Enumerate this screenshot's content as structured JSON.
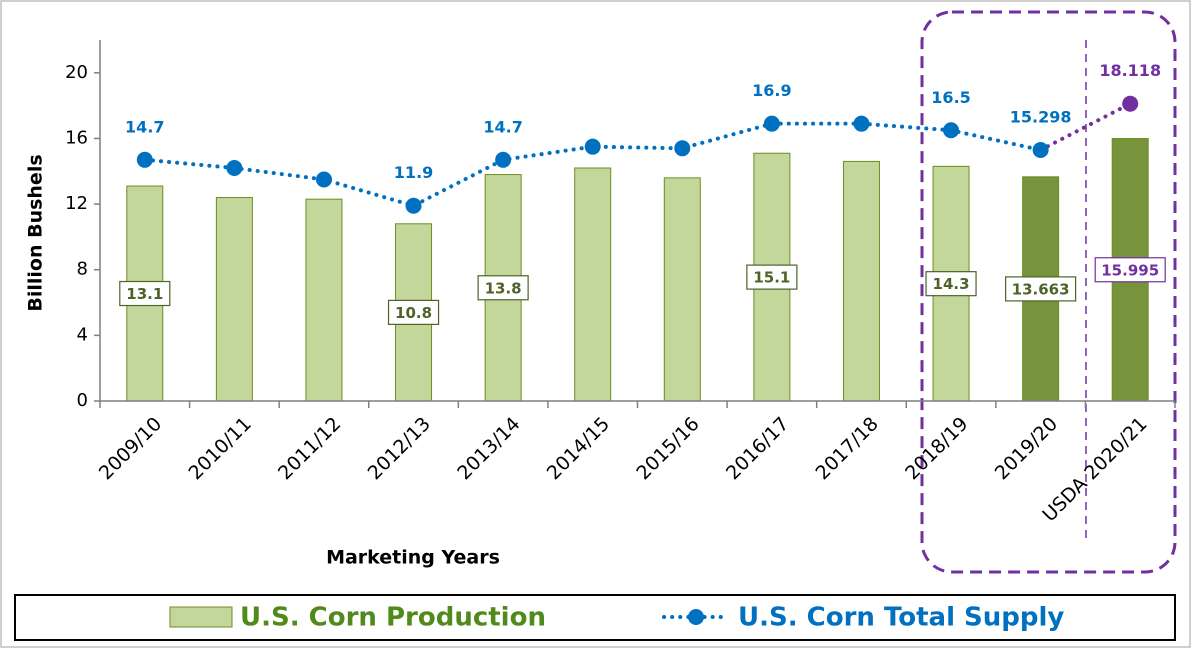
{
  "chart_data": {
    "type": "bar_line",
    "x_label": "Marketing Years",
    "y_label": "Billion Bushels",
    "categories": [
      "2009/10",
      "2010/11",
      "2011/12",
      "2012/13",
      "2013/14",
      "2014/15",
      "2015/16",
      "2016/17",
      "2017/18",
      "2018/19",
      "2019/20",
      "USDA 2020/21"
    ],
    "ylim": [
      0,
      22
    ],
    "yticks": [
      0,
      4,
      8,
      12,
      16,
      20
    ],
    "legend": "bottom",
    "series": [
      {
        "name": "U.S. Corn Production",
        "type": "bar",
        "color": "#c4d79b",
        "colors": [
          "#c4d79b",
          "#c4d79b",
          "#c4d79b",
          "#c4d79b",
          "#c4d79b",
          "#c4d79b",
          "#c4d79b",
          "#c4d79b",
          "#c4d79b",
          "#c4d79b",
          "#77933c",
          "#77933c"
        ],
        "values": [
          13.1,
          12.4,
          12.3,
          10.8,
          13.8,
          14.2,
          13.6,
          15.1,
          14.6,
          14.3,
          13.663,
          15.995
        ],
        "value_labels": [
          "13.1",
          null,
          null,
          "10.8",
          "13.8",
          null,
          null,
          "15.1",
          null,
          "14.3",
          "13.663",
          "15.995"
        ]
      },
      {
        "name": "U.S. Corn Total Supply",
        "type": "line",
        "color": "#0070c0",
        "colors": [
          "#0070c0",
          "#0070c0",
          "#0070c0",
          "#0070c0",
          "#0070c0",
          "#0070c0",
          "#0070c0",
          "#0070c0",
          "#0070c0",
          "#0070c0",
          "#0070c0",
          "#7030a0"
        ],
        "values": [
          14.7,
          14.2,
          13.5,
          11.9,
          14.7,
          15.5,
          15.4,
          16.9,
          16.9,
          16.5,
          15.298,
          18.118
        ],
        "value_labels": [
          "14.7",
          null,
          null,
          "11.9",
          "14.7",
          null,
          null,
          "16.9",
          null,
          "16.5",
          "15.298",
          "18.118"
        ]
      }
    ]
  }
}
